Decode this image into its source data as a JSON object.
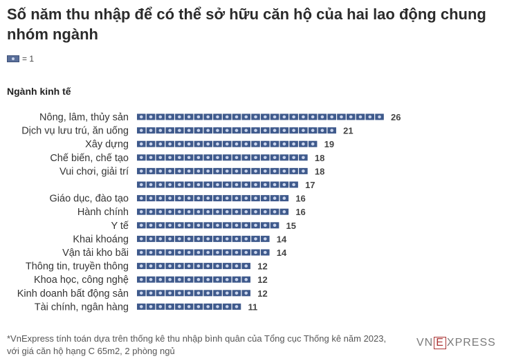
{
  "title": "Số năm thu nhập để có thể sở hữu căn hộ của hai lao động chung nhóm ngành",
  "legend": {
    "icon": "banknote-icon",
    "text": "= 1"
  },
  "section_label": "Ngành kinh tế",
  "footnote": {
    "line1": "*VnExpress tính toán dựa trên thống kê thu nhập bình quân của Tổng cục Thống kê năm 2023,",
    "line2": "với giá căn hộ hạng C 65m2, 2 phòng ngủ"
  },
  "logo": {
    "left": "VN",
    "box": "E",
    "right": "XPRESS"
  },
  "colors": {
    "unit": "#3f5a8c",
    "unit_light": "#c9d4ec",
    "text": "#333333"
  },
  "chart_data": {
    "type": "bar",
    "orientation": "horizontal",
    "unit_icon": "banknote-icon",
    "unit_value": 1,
    "categories": [
      "Nông, lâm, thủy sản",
      "Dịch vụ lưu trú, ăn uống",
      "Xây dựng",
      "Chế biến, chế tạo",
      "Vui chơi, giải trí",
      "",
      "Giáo dục, đào tạo",
      "Hành chính",
      "Y tế",
      "Khai khoáng",
      "Vận tải kho bãi",
      "Thông tin, truyền thông",
      "Khoa học, công nghệ",
      "Kinh doanh bất động sản",
      "Tài chính, ngân hàng"
    ],
    "values": [
      26,
      21,
      19,
      18,
      18,
      17,
      16,
      16,
      15,
      14,
      14,
      12,
      12,
      12,
      11
    ]
  }
}
